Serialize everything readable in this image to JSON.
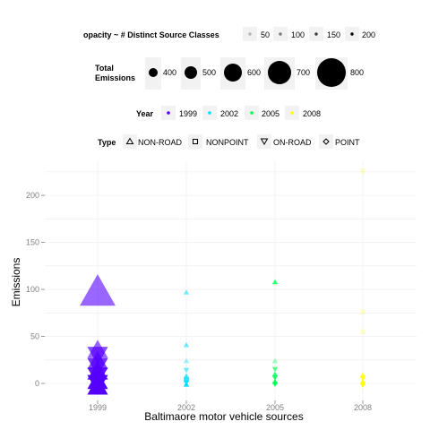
{
  "chart_data": {
    "type": "scatter",
    "xlabel": "Baltimaore motor vehicle sources",
    "ylabel": "Emissions",
    "categories": [
      "1999",
      "2002",
      "2005",
      "2008"
    ],
    "ylim": [
      -10,
      230
    ],
    "yticks": [
      0,
      50,
      100,
      150,
      200
    ],
    "grid": true,
    "legend_position": "top",
    "legends": {
      "opacity": {
        "title": "opacity ~ # Distinct Source Classes",
        "values": [
          "50",
          "100",
          "150",
          "200"
        ]
      },
      "size": {
        "title_line1": "Total",
        "title_line2": "Emissions",
        "values": [
          "400",
          "500",
          "600",
          "700",
          "800"
        ]
      },
      "year": {
        "title": "Year",
        "labels": [
          "1999",
          "2002",
          "2005",
          "2008"
        ],
        "colors": [
          "#5500ff",
          "#00ddff",
          "#00ff55",
          "#ffff00"
        ]
      },
      "type": {
        "title": "Type",
        "labels": [
          "NON-ROAD",
          "NONPOINT",
          "ON-ROAD",
          "POINT"
        ],
        "icons": [
          "triangle-up-icon",
          "square-icon",
          "triangle-down-icon",
          "diamond-icon"
        ]
      }
    },
    "series": [
      {
        "name": "1999",
        "color": "#5500ff",
        "points": [
          {
            "y": 98,
            "shape": "triangle-up",
            "size": 800,
            "opacity": 0.6
          },
          {
            "y": 36,
            "shape": "triangle-up",
            "size": 600,
            "opacity": 0.6
          },
          {
            "y": 30,
            "shape": "triangle-down",
            "size": 600,
            "opacity": 0.7
          },
          {
            "y": 24,
            "shape": "triangle-up",
            "size": 600,
            "opacity": 0.7
          },
          {
            "y": 18,
            "shape": "triangle-down",
            "size": 600,
            "opacity": 0.8
          },
          {
            "y": 13,
            "shape": "triangle-up",
            "size": 600,
            "opacity": 0.9
          },
          {
            "y": 8,
            "shape": "triangle-down",
            "size": 600,
            "opacity": 0.9
          },
          {
            "y": 3,
            "shape": "triangle-up",
            "size": 600,
            "opacity": 1.0
          },
          {
            "y": 0,
            "shape": "triangle-down",
            "size": 600,
            "opacity": 1.0
          },
          {
            "y": -3,
            "shape": "triangle-up",
            "size": 600,
            "opacity": 1.0
          }
        ]
      },
      {
        "name": "2002",
        "color": "#00ddff",
        "points": [
          {
            "y": 97,
            "shape": "triangle-up",
            "size": 400,
            "opacity": 0.55
          },
          {
            "y": 41,
            "shape": "triangle-up",
            "size": 400,
            "opacity": 0.6
          },
          {
            "y": 24,
            "shape": "triangle-up",
            "size": 400,
            "opacity": 0.4
          },
          {
            "y": 14,
            "shape": "triangle-down",
            "size": 400,
            "opacity": 0.6
          },
          {
            "y": 8,
            "shape": "triangle-up",
            "size": 400,
            "opacity": 0.7
          },
          {
            "y": 4,
            "shape": "square",
            "size": 400,
            "opacity": 0.8
          },
          {
            "y": 1,
            "shape": "triangle-down",
            "size": 400,
            "opacity": 0.9
          },
          {
            "y": -1,
            "shape": "triangle-up",
            "size": 400,
            "opacity": 1.0
          }
        ]
      },
      {
        "name": "2005",
        "color": "#00ff55",
        "points": [
          {
            "y": 108,
            "shape": "triangle-up",
            "size": 400,
            "opacity": 0.8
          },
          {
            "y": 24,
            "shape": "triangle-up",
            "size": 400,
            "opacity": 0.4
          },
          {
            "y": 15,
            "shape": "triangle-down",
            "size": 400,
            "opacity": 0.7
          },
          {
            "y": 10,
            "shape": "triangle-up",
            "size": 400,
            "opacity": 0.8
          },
          {
            "y": 6,
            "shape": "triangle-down",
            "size": 400,
            "opacity": 0.9
          },
          {
            "y": 2,
            "shape": "triangle-up",
            "size": 400,
            "opacity": 1.0
          },
          {
            "y": -1,
            "shape": "triangle-down",
            "size": 400,
            "opacity": 1.0
          }
        ]
      },
      {
        "name": "2008",
        "color": "#ffff00",
        "points": [
          {
            "y": 226,
            "shape": "square",
            "size": 400,
            "opacity": 0.2
          },
          {
            "y": 76,
            "shape": "square",
            "size": 400,
            "opacity": 0.2
          },
          {
            "y": 55,
            "shape": "square",
            "size": 400,
            "opacity": 0.2
          },
          {
            "y": 9,
            "shape": "triangle-up",
            "size": 400,
            "opacity": 0.8
          },
          {
            "y": 5,
            "shape": "triangle-down",
            "size": 400,
            "opacity": 0.9
          },
          {
            "y": 2,
            "shape": "triangle-up",
            "size": 400,
            "opacity": 1.0
          },
          {
            "y": -2,
            "shape": "triangle-down",
            "size": 400,
            "opacity": 1.0
          }
        ]
      }
    ]
  }
}
